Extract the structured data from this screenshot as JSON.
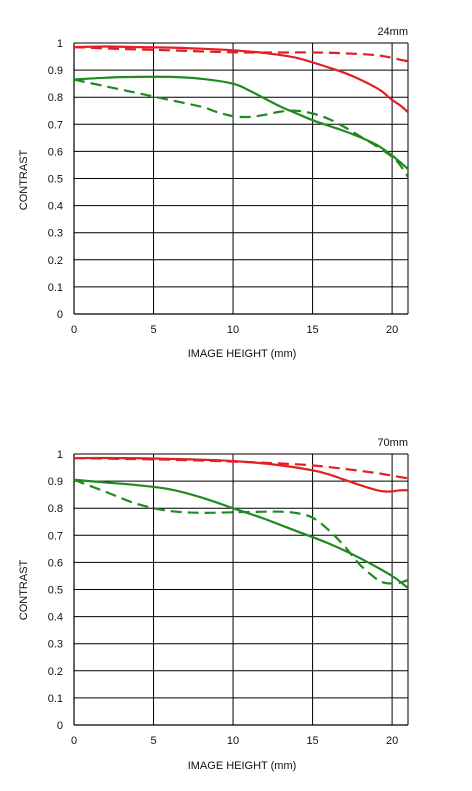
{
  "chart_data": [
    {
      "type": "line",
      "title": "24mm",
      "xlabel": "IMAGE HEIGHT (mm)",
      "ylabel": "CONTRAST",
      "xlim": [
        0,
        21
      ],
      "ylim": [
        0,
        1
      ],
      "xticks": [
        0,
        5,
        10,
        15,
        20
      ],
      "yticks": [
        0,
        0.1,
        0.2,
        0.3,
        0.4,
        0.5,
        0.6,
        0.7,
        0.8,
        0.9,
        1
      ],
      "ytick_labels": [
        "0",
        "0.1",
        "0.2",
        "0.3",
        "0.4",
        "0.5",
        "0.6",
        "0.7",
        "0.8",
        "0.9",
        "1"
      ],
      "xtick_labels": [
        "0",
        "5",
        "10",
        "15",
        "20"
      ],
      "grid": true,
      "series": [
        {
          "color": "#e31e24",
          "dash": "solid",
          "x": [
            0,
            2,
            4,
            6,
            8,
            10,
            12,
            14,
            16,
            17,
            18,
            19,
            19.5,
            20,
            20.5,
            21
          ],
          "y": [
            0.985,
            0.987,
            0.985,
            0.983,
            0.979,
            0.973,
            0.963,
            0.945,
            0.91,
            0.89,
            0.865,
            0.835,
            0.815,
            0.79,
            0.77,
            0.745
          ]
        },
        {
          "color": "#e31e24",
          "dash": "dashed",
          "x": [
            0,
            3,
            6,
            9,
            11,
            13,
            15,
            17,
            19,
            20,
            21
          ],
          "y": [
            0.985,
            0.978,
            0.973,
            0.967,
            0.965,
            0.965,
            0.965,
            0.962,
            0.955,
            0.945,
            0.932
          ]
        },
        {
          "color": "#1f8a1f",
          "dash": "solid",
          "x": [
            0,
            2,
            4,
            6,
            8,
            10,
            11,
            12,
            13,
            14,
            15,
            16,
            17,
            18,
            19,
            20,
            21
          ],
          "y": [
            0.865,
            0.872,
            0.875,
            0.875,
            0.868,
            0.85,
            0.825,
            0.795,
            0.765,
            0.74,
            0.715,
            0.695,
            0.675,
            0.652,
            0.625,
            0.585,
            0.535
          ]
        },
        {
          "color": "#1f8a1f",
          "dash": "dashed",
          "x": [
            0,
            2,
            4,
            6,
            8,
            9,
            10,
            11,
            12,
            13,
            14,
            15,
            16,
            17,
            18,
            19,
            20,
            20.5,
            21
          ],
          "y": [
            0.865,
            0.84,
            0.815,
            0.79,
            0.765,
            0.745,
            0.73,
            0.727,
            0.735,
            0.747,
            0.75,
            0.74,
            0.72,
            0.69,
            0.655,
            0.62,
            0.58,
            0.55,
            0.505
          ]
        }
      ]
    },
    {
      "type": "line",
      "title": "70mm",
      "xlabel": "IMAGE HEIGHT (mm)",
      "ylabel": "CONTRAST",
      "xlim": [
        0,
        21
      ],
      "ylim": [
        0,
        1
      ],
      "xticks": [
        0,
        5,
        10,
        15,
        20
      ],
      "yticks": [
        0,
        0.1,
        0.2,
        0.3,
        0.4,
        0.5,
        0.6,
        0.7,
        0.8,
        0.9,
        1
      ],
      "ytick_labels": [
        "0",
        "0.1",
        "0.2",
        "0.3",
        "0.4",
        "0.5",
        "0.6",
        "0.7",
        "0.8",
        "0.9",
        "1"
      ],
      "xtick_labels": [
        "0",
        "5",
        "10",
        "15",
        "20"
      ],
      "grid": true,
      "series": [
        {
          "color": "#e31e24",
          "dash": "solid",
          "x": [
            0,
            3,
            6,
            9,
            11,
            13,
            15,
            16,
            17,
            18,
            19,
            19.5,
            20,
            20.5,
            21
          ],
          "y": [
            0.985,
            0.985,
            0.982,
            0.977,
            0.97,
            0.958,
            0.94,
            0.925,
            0.905,
            0.885,
            0.867,
            0.862,
            0.862,
            0.866,
            0.866
          ]
        },
        {
          "color": "#e31e24",
          "dash": "dashed",
          "x": [
            0,
            3,
            6,
            9,
            11,
            13,
            15,
            17,
            19,
            20,
            21
          ],
          "y": [
            0.985,
            0.982,
            0.979,
            0.974,
            0.97,
            0.965,
            0.958,
            0.945,
            0.93,
            0.92,
            0.91
          ]
        },
        {
          "color": "#1f8a1f",
          "dash": "solid",
          "x": [
            0,
            2,
            4,
            6,
            8,
            10,
            12,
            14,
            16,
            18,
            20,
            21
          ],
          "y": [
            0.905,
            0.895,
            0.885,
            0.87,
            0.84,
            0.8,
            0.76,
            0.715,
            0.67,
            0.615,
            0.55,
            0.505
          ]
        },
        {
          "color": "#1f8a1f",
          "dash": "dashed",
          "x": [
            0,
            2,
            4,
            6,
            8,
            10,
            12,
            13,
            14,
            15,
            16,
            17,
            18,
            19,
            19.5,
            20,
            20.5,
            21
          ],
          "y": [
            0.905,
            0.86,
            0.815,
            0.79,
            0.783,
            0.785,
            0.787,
            0.787,
            0.782,
            0.765,
            0.72,
            0.66,
            0.59,
            0.54,
            0.525,
            0.522,
            0.525,
            0.535
          ]
        }
      ]
    }
  ]
}
